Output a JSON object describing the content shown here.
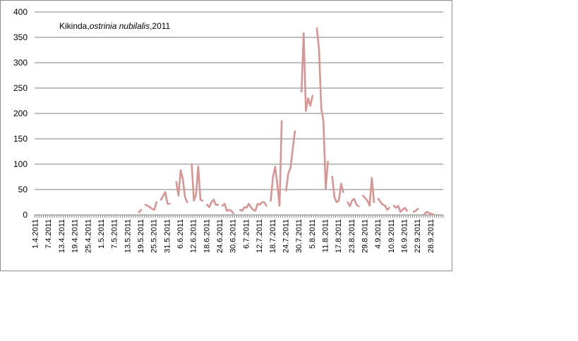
{
  "chart_data": {
    "type": "line",
    "title_parts": {
      "place": "Kikinda,",
      "species": "ostrinia nubilalis",
      "year": ",2011"
    },
    "xlabel": "",
    "ylabel": "",
    "ylim": [
      0,
      400
    ],
    "yticks": [
      0,
      50,
      100,
      150,
      200,
      250,
      300,
      350,
      400
    ],
    "grid": "horizontal",
    "legend": "none",
    "colors": {
      "series": "#d99594",
      "grid": "#7f7f7f"
    },
    "x_start": "1.4.2011",
    "x_end": "3.10.2011",
    "x_tick_labels": [
      "1.4.2011",
      "7.4.2011",
      "13.4.2011",
      "19.4.2011",
      "25.4.2011",
      "1.5.2011",
      "7.5.2011",
      "13.5.2011",
      "19.5.2011",
      "25.5.2011",
      "31.5.2011",
      "6.6.2011",
      "12.6.2011",
      "18.6.2011",
      "24.6.2011",
      "30.6.2011",
      "6.7.2011",
      "12.7.2011",
      "18.7.2011",
      "24.7.2011",
      "30.7.2011",
      "5.8.2011",
      "11.8.2011",
      "17.8.2011",
      "23.8.2011",
      "29.8.2011",
      "4.9.2011",
      "10.9.2011",
      "16.9.2011",
      "22.9.2011",
      "28.9.2011"
    ],
    "series": [
      {
        "segments": [
          [
            [
              "18.5.2011",
              5
            ],
            [
              "19.5.2011",
              10
            ]
          ],
          [
            [
              "21.5.2011",
              20
            ],
            [
              "22.5.2011",
              18
            ],
            [
              "23.5.2011",
              15
            ],
            [
              "24.5.2011",
              12
            ],
            [
              "25.5.2011",
              10
            ],
            [
              "26.5.2011",
              25
            ]
          ],
          [
            [
              "28.5.2011",
              30
            ],
            [
              "29.5.2011",
              37
            ],
            [
              "30.5.2011",
              45
            ],
            [
              "31.5.2011",
              22
            ],
            [
              "1.6.2011",
              22
            ]
          ],
          [
            [
              "4.6.2011",
              65
            ],
            [
              "5.6.2011",
              38
            ],
            [
              "6.6.2011",
              88
            ],
            [
              "7.6.2011",
              70
            ],
            [
              "8.6.2011",
              35
            ],
            [
              "9.6.2011",
              25
            ]
          ],
          [
            [
              "11.6.2011",
              100
            ],
            [
              "12.6.2011",
              28
            ],
            [
              "13.6.2011",
              40
            ],
            [
              "14.6.2011",
              95
            ],
            [
              "15.6.2011",
              30
            ],
            [
              "16.6.2011",
              28
            ]
          ],
          [
            [
              "18.6.2011",
              20
            ],
            [
              "19.6.2011",
              15
            ],
            [
              "20.6.2011",
              25
            ],
            [
              "21.6.2011",
              30
            ],
            [
              "22.6.2011",
              20
            ],
            [
              "23.6.2011",
              20
            ]
          ],
          [
            [
              "25.6.2011",
              18
            ],
            [
              "26.6.2011",
              22
            ],
            [
              "27.6.2011",
              8
            ],
            [
              "28.6.2011",
              10
            ],
            [
              "29.6.2011",
              8
            ],
            [
              "30.6.2011",
              3
            ]
          ],
          [
            [
              "3.7.2011",
              10
            ],
            [
              "4.7.2011",
              8
            ],
            [
              "5.7.2011",
              15
            ],
            [
              "6.7.2011",
              14
            ],
            [
              "7.7.2011",
              22
            ],
            [
              "8.7.2011",
              15
            ],
            [
              "9.7.2011",
              10
            ],
            [
              "10.7.2011",
              8
            ],
            [
              "11.7.2011",
              22
            ],
            [
              "12.7.2011",
              20
            ],
            [
              "13.7.2011",
              25
            ],
            [
              "14.7.2011",
              25
            ],
            [
              "15.7.2011",
              18
            ]
          ],
          [
            [
              "17.7.2011",
              28
            ],
            [
              "18.7.2011",
              75
            ],
            [
              "19.7.2011",
              95
            ],
            [
              "20.7.2011",
              60
            ],
            [
              "21.7.2011",
              18
            ],
            [
              "22.7.2011",
              185
            ]
          ],
          [
            [
              "24.7.2011",
              48
            ],
            [
              "25.7.2011",
              82
            ],
            [
              "26.7.2011",
              93
            ],
            [
              "27.7.2011",
              130
            ],
            [
              "28.7.2011",
              165
            ]
          ],
          [
            [
              "31.7.2011",
              243
            ],
            [
              "1.8.2011",
              358
            ],
            [
              "2.8.2011",
              205
            ],
            [
              "3.8.2011",
              230
            ],
            [
              "4.8.2011",
              215
            ],
            [
              "5.8.2011",
              235
            ]
          ],
          [
            [
              "7.8.2011",
              368
            ],
            [
              "8.8.2011",
              325
            ],
            [
              "9.8.2011",
              210
            ],
            [
              "10.8.2011",
              185
            ],
            [
              "11.8.2011",
              52
            ],
            [
              "12.8.2011",
              105
            ]
          ],
          [
            [
              "14.8.2011",
              75
            ],
            [
              "15.8.2011",
              35
            ],
            [
              "16.8.2011",
              25
            ],
            [
              "17.8.2011",
              28
            ],
            [
              "18.8.2011",
              62
            ],
            [
              "19.8.2011",
              45
            ]
          ],
          [
            [
              "21.8.2011",
              25
            ],
            [
              "22.8.2011",
              17
            ],
            [
              "23.8.2011",
              28
            ],
            [
              "24.8.2011",
              32
            ],
            [
              "25.8.2011",
              20
            ],
            [
              "26.8.2011",
              17
            ]
          ],
          [
            [
              "28.8.2011",
              38
            ],
            [
              "29.8.2011",
              33
            ],
            [
              "30.8.2011",
              28
            ],
            [
              "31.8.2011",
              18
            ],
            [
              "1.9.2011",
              73
            ],
            [
              "2.9.2011",
              25
            ]
          ],
          [
            [
              "4.9.2011",
              32
            ],
            [
              "5.9.2011",
              25
            ],
            [
              "6.9.2011",
              20
            ],
            [
              "7.9.2011",
              18
            ],
            [
              "8.9.2011",
              10
            ],
            [
              "9.9.2011",
              14
            ]
          ],
          [
            [
              "11.9.2011",
              18
            ],
            [
              "12.9.2011",
              14
            ],
            [
              "13.9.2011",
              18
            ],
            [
              "14.9.2011",
              6
            ],
            [
              "15.9.2011",
              10
            ],
            [
              "16.9.2011",
              14
            ],
            [
              "17.9.2011",
              8
            ]
          ],
          [
            [
              "20.9.2011",
              6
            ],
            [
              "21.9.2011",
              8
            ],
            [
              "22.9.2011",
              12
            ]
          ],
          [
            [
              "25.9.2011",
              2
            ],
            [
              "26.9.2011",
              6
            ],
            [
              "27.9.2011",
              4
            ],
            [
              "28.9.2011",
              2
            ],
            [
              "29.9.2011",
              1
            ]
          ]
        ]
      }
    ]
  }
}
